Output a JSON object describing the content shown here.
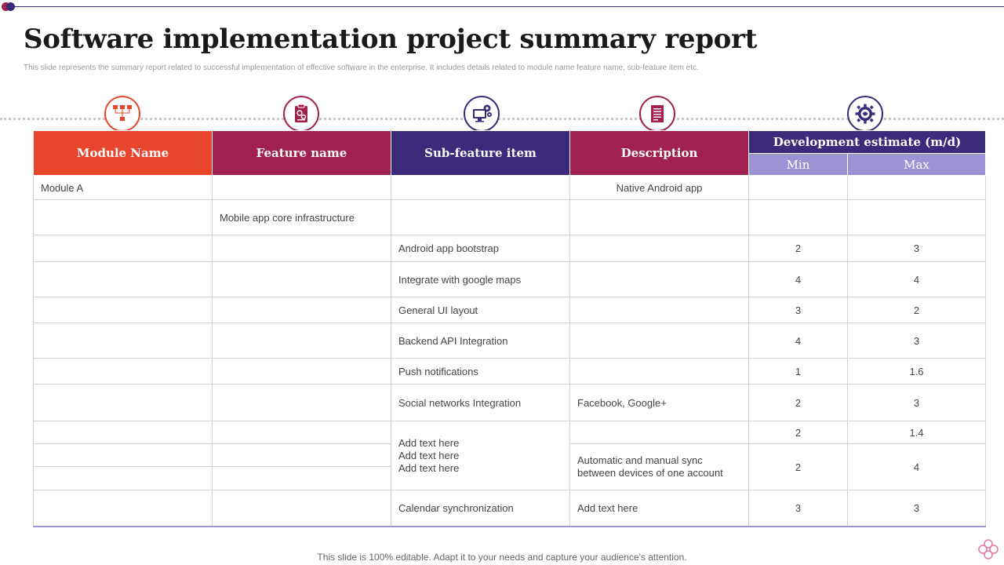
{
  "header": {
    "title": "Software implementation project summary report",
    "subtitle": "This slide represents the summary report related to successful implementation of effective software in the enterprise. It includes details related to module name feature name, sub-feature item etc."
  },
  "colors": {
    "module": "#e8452c",
    "feature": "#a0204f",
    "subfeature": "#3c2a7a",
    "description": "#a0204f",
    "estimate": "#3c2a7a",
    "estimate_sub": "#9b93d4"
  },
  "icons": [
    "hierarchy-icon",
    "clipboard-icon",
    "monitor-gears-icon",
    "document-icon",
    "brain-gear-icon"
  ],
  "table": {
    "headers": {
      "module": "Module Name",
      "feature": "Feature name",
      "subfeature": "Sub-feature item",
      "description": "Description",
      "estimate": "Development estimate (m/d)",
      "min": "Min",
      "max": "Max"
    },
    "rows": [
      {
        "module": "Module A",
        "feature": "",
        "subfeature": "",
        "description": "Native Android app",
        "min": "",
        "max": ""
      },
      {
        "module": "",
        "feature": "Mobile app core infrastructure",
        "subfeature": "",
        "description": "",
        "min": "",
        "max": ""
      },
      {
        "module": "",
        "feature": "",
        "subfeature": "Android app bootstrap",
        "description": "",
        "min": "2",
        "max": "3"
      },
      {
        "module": "",
        "feature": "",
        "subfeature": "Integrate with google maps",
        "description": "",
        "min": "4",
        "max": "4"
      },
      {
        "module": "",
        "feature": "",
        "subfeature": "General UI layout",
        "description": "",
        "min": "3",
        "max": "2"
      },
      {
        "module": "",
        "feature": "",
        "subfeature": "Backend API Integration",
        "description": "",
        "min": "4",
        "max": "3"
      },
      {
        "module": "",
        "feature": "",
        "subfeature": "Push notifications",
        "description": "",
        "min": "1",
        "max": "1.6"
      },
      {
        "module": "",
        "feature": "",
        "subfeature": "Social networks Integration",
        "description": "Facebook, Google+",
        "min": "2",
        "max": "3"
      },
      {
        "module": "",
        "feature": "",
        "subfeature": "Add text here\nAdd text here\nAdd text here",
        "description": "",
        "min": "2",
        "max": "1.4"
      },
      {
        "module": "",
        "feature": "",
        "description": "Automatic and manual sync between devices of one account",
        "min": "2",
        "max": "4"
      },
      {
        "module": "",
        "feature": ""
      },
      {
        "module": "",
        "feature": "",
        "subfeature": "Calendar synchronization",
        "description": "Add text here",
        "min": "3",
        "max": "3"
      }
    ]
  },
  "footer": "This slide is 100% editable. Adapt it to your needs and capture your audience's attention."
}
